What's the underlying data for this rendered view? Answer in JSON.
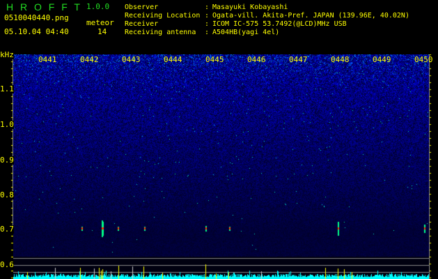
{
  "app": {
    "name": "H R O F F T",
    "version": "1.0.0"
  },
  "file": {
    "name": "0510040440.png",
    "datetime": "05.10.04 04:40"
  },
  "meteor": {
    "label": "meteor",
    "count": "14"
  },
  "info": [
    {
      "label": "Observer",
      "value": "Masayuki Kobayashi"
    },
    {
      "label": "Receiving Location",
      "value": "Ogata-vill. Akita-Pref. JAPAN (139.96E, 40.02N)"
    },
    {
      "label": "Receiver",
      "value": "ICOM IC-575 53.7492(@LCD)MHz USB"
    },
    {
      "label": "Receiving antenna",
      "value": "A504HB(yagi 4el)"
    }
  ],
  "axis": {
    "unit": "kHz",
    "freq_ticks": [
      "1.1",
      "1.0",
      "0.9",
      "0.8",
      "0.7",
      "0.6"
    ],
    "time_ticks": [
      "0441",
      "0442",
      "0443",
      "0444",
      "0445",
      "0446",
      "0447",
      "0448",
      "0449",
      "0450"
    ]
  },
  "colors": {
    "text": "#ffff00",
    "logo": "#22dd22",
    "histogram": "#00ffff",
    "meteor_marker": "#ffff00",
    "background_noise": "#0000aa"
  }
}
